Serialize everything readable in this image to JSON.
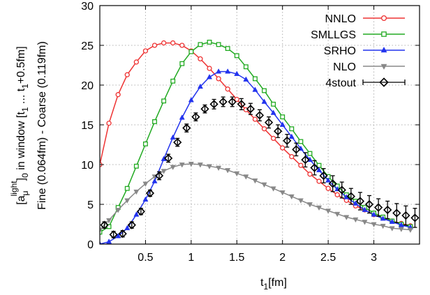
{
  "chart_data": {
    "type": "line",
    "xlabel": {
      "main": "t",
      "sub": "1",
      "rest": "[fm]"
    },
    "ylabel": {
      "line1": {
        "p1": "[a",
        "sub": "μ",
        "sup": "light",
        "p2": "]",
        "sub2": "0",
        "p3": " in window [t",
        "sub3": "1",
        "p4": " ... t",
        "sub4": "1",
        "p5": "+0.5fm]"
      },
      "line2": "Fine (0.064fm) - Coarse (0.119fm)"
    },
    "xlim": [
      0,
      3.5
    ],
    "ylim": [
      0,
      30
    ],
    "xticks": [
      0.5,
      1,
      1.5,
      2,
      2.5,
      3
    ],
    "xtick_labels": [
      "0.5",
      "1",
      "1.5",
      "2",
      "2.5",
      "3"
    ],
    "yticks": [
      0,
      5,
      10,
      15,
      20,
      25,
      30
    ],
    "ytick_labels": [
      "0",
      "5",
      "10",
      "15",
      "20",
      "25",
      "30"
    ],
    "grid": true,
    "legend_position": "top-right",
    "series": [
      {
        "name": "NNLO",
        "color": "#ee3333",
        "marker": "circle",
        "x": [
          0.0,
          0.1,
          0.2,
          0.3,
          0.4,
          0.5,
          0.6,
          0.7,
          0.8,
          0.9,
          1.0,
          1.1,
          1.2,
          1.3,
          1.4,
          1.5,
          1.6,
          1.7,
          1.8,
          1.9,
          2.0,
          2.1,
          2.2,
          2.3,
          2.4,
          2.5,
          2.6,
          2.7,
          2.8,
          2.9,
          3.0,
          3.1,
          3.2,
          3.3,
          3.4
        ],
        "y": [
          10.0,
          15.2,
          18.8,
          21.3,
          22.9,
          24.3,
          25.0,
          25.3,
          25.3,
          25.0,
          24.3,
          23.3,
          22.1,
          20.8,
          19.5,
          18.2,
          16.9,
          15.7,
          14.5,
          13.3,
          12.1,
          11.0,
          9.9,
          8.8,
          7.9,
          7.0,
          6.2,
          5.5,
          4.8,
          4.3,
          3.7,
          3.3,
          2.9,
          2.6,
          2.3
        ]
      },
      {
        "name": "SMLLGS",
        "color": "#22aa22",
        "marker": "square",
        "x": [
          0.0,
          0.1,
          0.2,
          0.3,
          0.4,
          0.5,
          0.6,
          0.7,
          0.8,
          0.9,
          1.0,
          1.1,
          1.2,
          1.3,
          1.4,
          1.5,
          1.6,
          1.7,
          1.8,
          1.9,
          2.0,
          2.1,
          2.2,
          2.3,
          2.4,
          2.5,
          2.6,
          2.7,
          2.8,
          2.9,
          3.0,
          3.1,
          3.2,
          3.3,
          3.4
        ],
        "y": [
          1.5,
          2.2,
          4.6,
          7.0,
          9.8,
          12.6,
          15.4,
          18.0,
          20.5,
          22.7,
          24.2,
          25.1,
          25.4,
          25.1,
          24.6,
          23.7,
          22.3,
          20.8,
          19.3,
          17.6,
          16.0,
          14.5,
          12.9,
          11.4,
          9.9,
          8.5,
          7.3,
          6.2,
          5.4,
          4.6,
          3.9,
          3.4,
          2.9,
          2.5,
          2.2
        ]
      },
      {
        "name": "SRHO",
        "color": "#2233ee",
        "marker": "triangle",
        "x": [
          0.0,
          0.1,
          0.2,
          0.3,
          0.4,
          0.5,
          0.6,
          0.7,
          0.8,
          0.9,
          1.0,
          1.1,
          1.2,
          1.3,
          1.4,
          1.5,
          1.6,
          1.7,
          1.8,
          1.9,
          2.0,
          2.1,
          2.2,
          2.3,
          2.4,
          2.5,
          2.6,
          2.7,
          2.8,
          2.9,
          3.0,
          3.1,
          3.2,
          3.3,
          3.4
        ],
        "y": [
          0.0,
          0.3,
          1.0,
          2.0,
          3.7,
          5.6,
          7.9,
          10.7,
          13.4,
          15.9,
          18.1,
          19.8,
          21.0,
          21.7,
          21.7,
          21.4,
          20.7,
          19.4,
          17.9,
          16.5,
          15.0,
          13.5,
          12.0,
          10.6,
          9.3,
          8.0,
          6.9,
          5.9,
          5.1,
          4.3,
          3.7,
          3.2,
          2.8,
          2.4,
          2.1
        ]
      },
      {
        "name": "NLO",
        "color": "#888888",
        "marker": "triangle-down",
        "x": [
          0.0,
          0.1,
          0.2,
          0.3,
          0.4,
          0.5,
          0.6,
          0.7,
          0.8,
          0.9,
          1.0,
          1.1,
          1.2,
          1.3,
          1.4,
          1.5,
          1.6,
          1.7,
          1.8,
          1.9,
          2.0,
          2.1,
          2.2,
          2.3,
          2.4,
          2.5,
          2.6,
          2.7,
          2.8,
          2.9,
          3.0,
          3.1,
          3.2,
          3.3,
          3.4
        ],
        "y": [
          1.8,
          3.0,
          4.3,
          5.5,
          6.6,
          7.6,
          8.5,
          9.2,
          9.7,
          10.0,
          10.1,
          10.0,
          9.8,
          9.6,
          9.3,
          8.9,
          8.5,
          8.0,
          7.5,
          7.0,
          6.5,
          6.0,
          5.5,
          5.0,
          4.6,
          4.2,
          3.8,
          3.4,
          3.1,
          2.8,
          2.5,
          2.3,
          2.0,
          1.9,
          1.8
        ]
      },
      {
        "name": "4stout",
        "color": "#000000",
        "marker": "diamond",
        "errorbars": true,
        "x": [
          0.05,
          0.15,
          0.25,
          0.35,
          0.45,
          0.55,
          0.65,
          0.75,
          0.85,
          0.95,
          1.05,
          1.15,
          1.25,
          1.35,
          1.45,
          1.55,
          1.65,
          1.75,
          1.85,
          1.95,
          2.05,
          2.15,
          2.25,
          2.35,
          2.45,
          2.55,
          2.65,
          2.75,
          2.85,
          2.95,
          3.05,
          3.15,
          3.25,
          3.35,
          3.45
        ],
        "y": [
          2.4,
          1.2,
          1.3,
          2.4,
          4.1,
          6.4,
          8.6,
          10.8,
          12.8,
          14.6,
          16.0,
          17.0,
          17.6,
          17.9,
          17.9,
          17.6,
          17.0,
          16.2,
          15.3,
          14.2,
          13.0,
          11.9,
          10.6,
          9.6,
          8.6,
          7.6,
          6.8,
          6.0,
          5.4,
          5.0,
          4.6,
          4.3,
          3.9,
          3.6,
          3.3
        ],
        "err": [
          0.4,
          0.4,
          0.4,
          0.4,
          0.4,
          0.4,
          0.5,
          0.5,
          0.5,
          0.5,
          0.5,
          0.5,
          0.6,
          0.6,
          0.6,
          0.7,
          0.7,
          0.7,
          0.7,
          0.8,
          0.8,
          0.8,
          0.9,
          0.9,
          0.9,
          1.0,
          1.0,
          1.0,
          1.1,
          1.1,
          1.1,
          1.1,
          1.2,
          1.2,
          1.2
        ]
      }
    ]
  }
}
